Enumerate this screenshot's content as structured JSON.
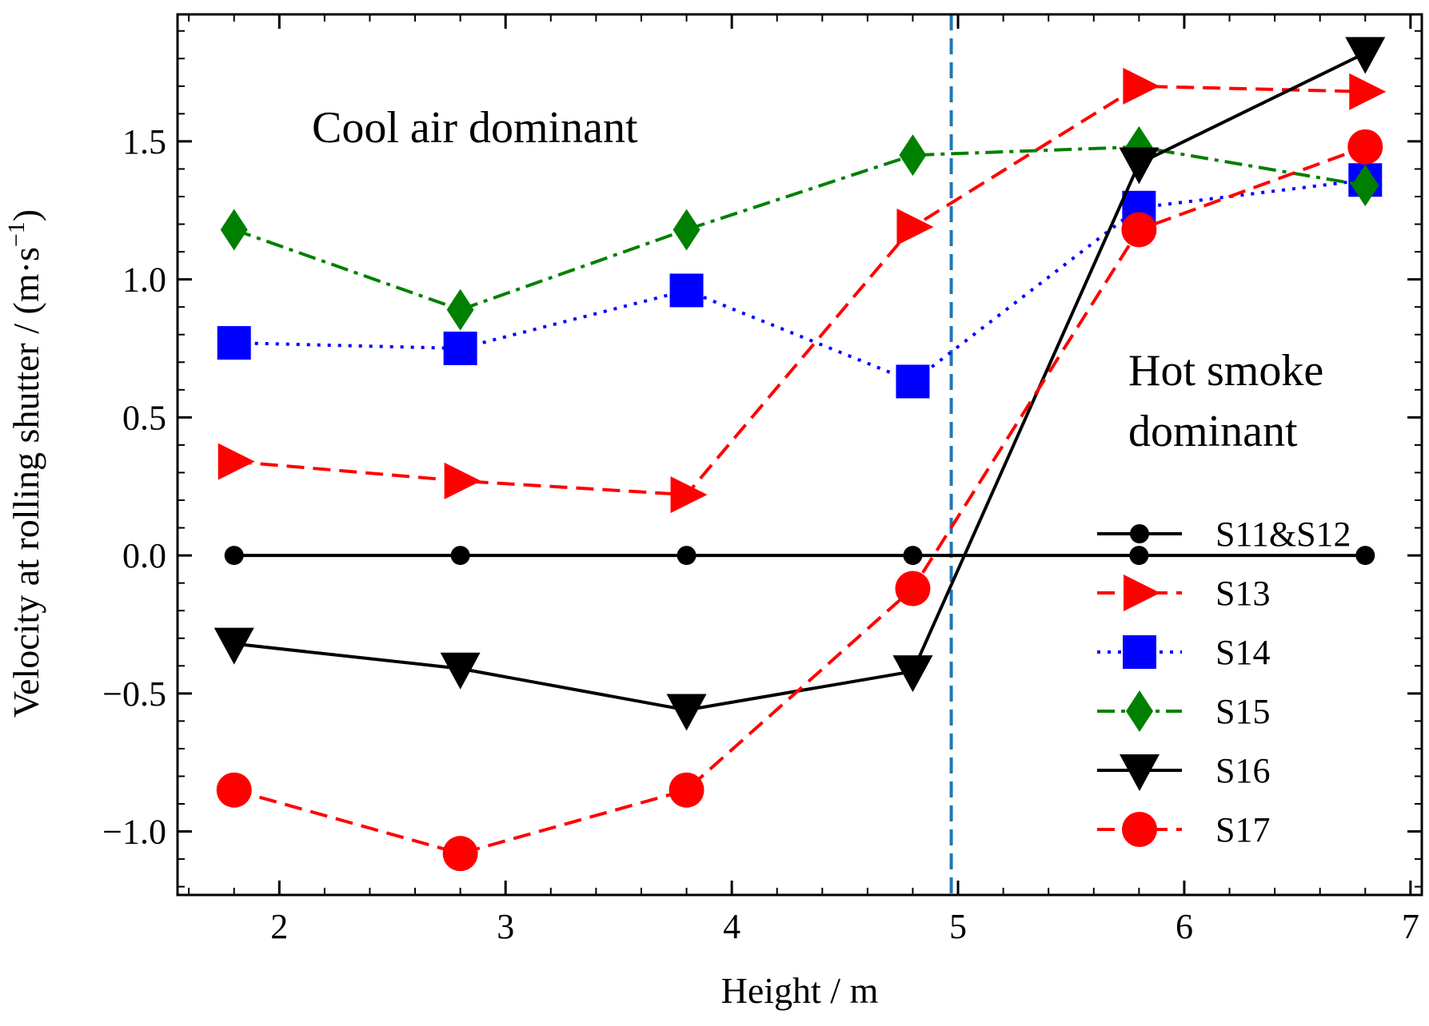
{
  "chart_data": {
    "type": "line",
    "title": "",
    "xlabel": "Height / m",
    "ylabel": "Velocity at rolling shutter / (m·s",
    "ylabel_sup": "−1",
    "ylabel_close": ")",
    "xlim": [
      1.55,
      7.05
    ],
    "ylim": [
      -1.23,
      1.96
    ],
    "x_ticks": [
      2,
      3,
      4,
      5,
      6,
      7
    ],
    "x_tick_labels": [
      "2",
      "3",
      "4",
      "5",
      "6",
      "7"
    ],
    "y_ticks": [
      -1.0,
      -0.5,
      0.0,
      0.5,
      1.0,
      1.5
    ],
    "y_tick_labels": [
      "−1.0",
      "−0.5",
      "0.0",
      "0.5",
      "1.0",
      "1.5"
    ],
    "x_minor_step": 0.2,
    "y_minor_step": 0.1,
    "x": [
      1.8,
      2.8,
      3.8,
      4.8,
      5.8,
      6.8
    ],
    "series": [
      {
        "name": "S11&S12",
        "values": [
          0,
          0,
          0,
          0,
          0,
          0
        ],
        "color": "#000000",
        "dash": "solid",
        "marker": "circle-small"
      },
      {
        "name": "S13",
        "values": [
          0.34,
          0.27,
          0.22,
          1.19,
          1.7,
          1.68
        ],
        "color": "#ff0000",
        "dash": "dashed",
        "marker": "triangle-right"
      },
      {
        "name": "S14",
        "values": [
          0.77,
          0.75,
          0.96,
          0.63,
          1.26,
          1.36
        ],
        "color": "#0000ff",
        "dash": "dotted",
        "marker": "square"
      },
      {
        "name": "S15",
        "values": [
          1.18,
          0.89,
          1.18,
          1.45,
          1.48,
          1.34
        ],
        "color": "#008000",
        "dash": "dashdot",
        "marker": "diamond"
      },
      {
        "name": "S16",
        "values": [
          -0.32,
          -0.41,
          -0.56,
          -0.42,
          1.42,
          1.82
        ],
        "color": "#000000",
        "dash": "solid",
        "marker": "triangle-down"
      },
      {
        "name": "S17",
        "values": [
          -0.85,
          -1.08,
          -0.85,
          -0.12,
          1.18,
          1.48
        ],
        "color": "#ff0000",
        "dash": "dashed",
        "marker": "circle"
      }
    ],
    "vline": {
      "x": 4.97,
      "color": "#1f77b4"
    },
    "annotations": {
      "cool": "Cool air dominant",
      "hot_line1": "Hot smoke",
      "hot_line2": "dominant"
    },
    "legend_position": "lower-right"
  }
}
